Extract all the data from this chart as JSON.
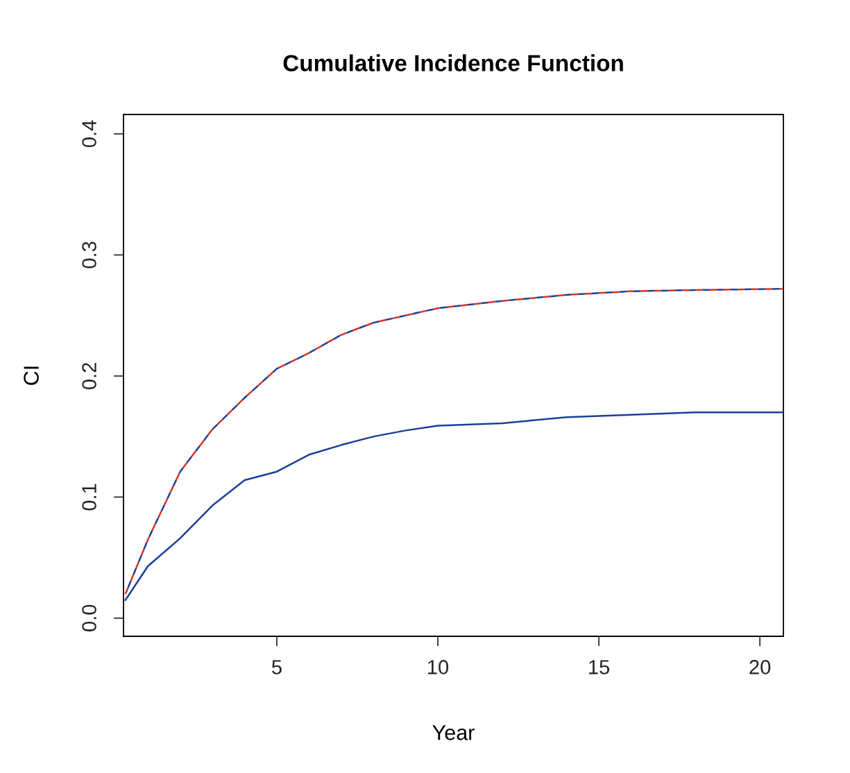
{
  "chart_data": {
    "type": "line",
    "title": "Cumulative Incidence Function",
    "xlabel": "Year",
    "ylabel": "CI",
    "x": [
      0.3,
      1,
      2,
      3,
      4,
      5,
      6,
      7,
      8,
      9,
      10,
      12,
      14,
      16,
      18,
      20.7
    ],
    "series": [
      {
        "color": "#e03020",
        "line_style": "dashed",
        "values": [
          0.02,
          0.065,
          0.121,
          0.156,
          0.182,
          0.206,
          0.219,
          0.234,
          0.244,
          0.25,
          0.256,
          0.262,
          0.267,
          0.27,
          0.271,
          0.272
        ]
      },
      {
        "color": "#1a3f9a",
        "line_style": "dashed",
        "values": [
          0.02,
          0.065,
          0.121,
          0.156,
          0.182,
          0.206,
          0.219,
          0.234,
          0.244,
          0.25,
          0.256,
          0.262,
          0.267,
          0.27,
          0.271,
          0.272
        ]
      },
      {
        "color": "#1a3f9a",
        "line_style": "solid",
        "values": [
          0.015,
          0.043,
          0.066,
          0.093,
          0.114,
          0.121,
          0.135,
          0.143,
          0.15,
          0.155,
          0.159,
          0.161,
          0.166,
          0.168,
          0.17,
          0.17
        ]
      }
    ],
    "xlim": [
      0.24,
      20.73
    ],
    "ylim": [
      -0.015,
      0.416
    ],
    "xticks": [
      5,
      10,
      15,
      20
    ],
    "yticks": [
      {
        "value": 0,
        "label": "0.0"
      },
      0.1,
      0.2,
      0.3,
      0.4
    ],
    "grid": false,
    "legend": false
  }
}
